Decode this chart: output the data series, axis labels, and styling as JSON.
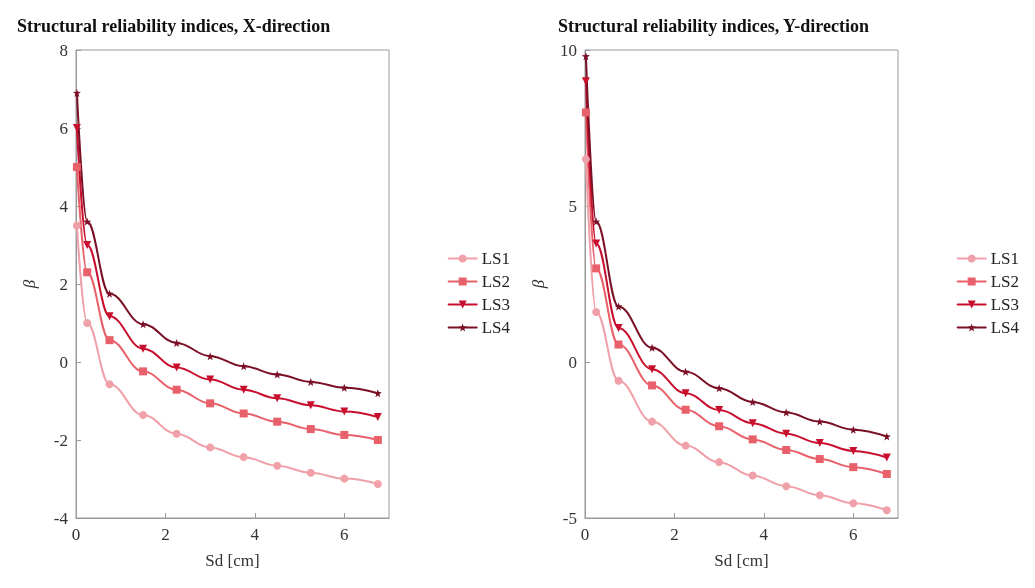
{
  "chart_data": [
    {
      "type": "line",
      "title": "Structural reliability indices, X-direction",
      "xlabel": "Sd [cm]",
      "ylabel": "β",
      "xlim": [
        0,
        7
      ],
      "xticks": [
        0,
        2,
        4,
        6
      ],
      "ylim": [
        -4,
        8
      ],
      "yticks": [
        -4,
        -2,
        0,
        2,
        4,
        6,
        8
      ],
      "grid": false,
      "legend": "right",
      "line_style": "solid",
      "x": [
        0.02,
        0.25,
        0.75,
        1.5,
        2.25,
        3,
        3.75,
        4.5,
        5.25,
        6,
        6.75
      ],
      "series": [
        {
          "name": "LS1",
          "color": "#f0a0a8",
          "marker": "circle",
          "values": [
            3.5,
            1.0,
            -0.57,
            -1.36,
            -1.84,
            -2.19,
            -2.44,
            -2.66,
            -2.84,
            -2.99,
            -3.13
          ]
        },
        {
          "name": "LS2",
          "color": "#e8606a",
          "marker": "square",
          "values": [
            5.0,
            2.3,
            0.56,
            -0.24,
            -0.71,
            -1.06,
            -1.32,
            -1.53,
            -1.72,
            -1.87,
            -2.0
          ]
        },
        {
          "name": "LS3",
          "color": "#c8102e",
          "marker": "triangle",
          "values": [
            6.0,
            3.0,
            1.17,
            0.34,
            -0.14,
            -0.45,
            -0.71,
            -0.93,
            -1.11,
            -1.27,
            -1.41
          ]
        },
        {
          "name": "LS4",
          "color": "#7a0f25",
          "marker": "star",
          "values": [
            6.9,
            3.6,
            1.75,
            0.97,
            0.49,
            0.15,
            -0.11,
            -0.32,
            -0.51,
            -0.66,
            -0.8
          ]
        }
      ]
    },
    {
      "type": "line",
      "title": "Structural reliability indices, Y-direction",
      "xlabel": "Sd [cm]",
      "ylabel": "β",
      "xlim": [
        0,
        7
      ],
      "xticks": [
        0,
        2,
        4,
        6
      ],
      "ylim": [
        -5,
        10
      ],
      "yticks": [
        -5,
        0,
        5,
        10
      ],
      "grid": false,
      "legend": "right",
      "line_style": "solid",
      "x": [
        0.02,
        0.25,
        0.75,
        1.5,
        2.25,
        3,
        3.75,
        4.5,
        5.25,
        6,
        6.75
      ],
      "series": [
        {
          "name": "LS1",
          "color": "#f0a0a8",
          "marker": "circle",
          "values": [
            6.5,
            1.6,
            -0.6,
            -1.91,
            -2.68,
            -3.21,
            -3.64,
            -3.98,
            -4.27,
            -4.53,
            -4.75
          ]
        },
        {
          "name": "LS2",
          "color": "#e8606a",
          "marker": "square",
          "values": [
            8.0,
            3.0,
            0.56,
            -0.75,
            -1.53,
            -2.06,
            -2.48,
            -2.82,
            -3.11,
            -3.37,
            -3.59
          ]
        },
        {
          "name": "LS3",
          "color": "#c8102e",
          "marker": "triangle",
          "values": [
            9.0,
            3.8,
            1.09,
            -0.23,
            -1.0,
            -1.54,
            -1.96,
            -2.3,
            -2.6,
            -2.85,
            -3.06
          ]
        },
        {
          "name": "LS4",
          "color": "#7a0f25",
          "marker": "star",
          "values": [
            9.8,
            4.5,
            1.78,
            0.46,
            -0.31,
            -0.84,
            -1.28,
            -1.62,
            -1.91,
            -2.17,
            -2.39
          ]
        }
      ]
    }
  ]
}
